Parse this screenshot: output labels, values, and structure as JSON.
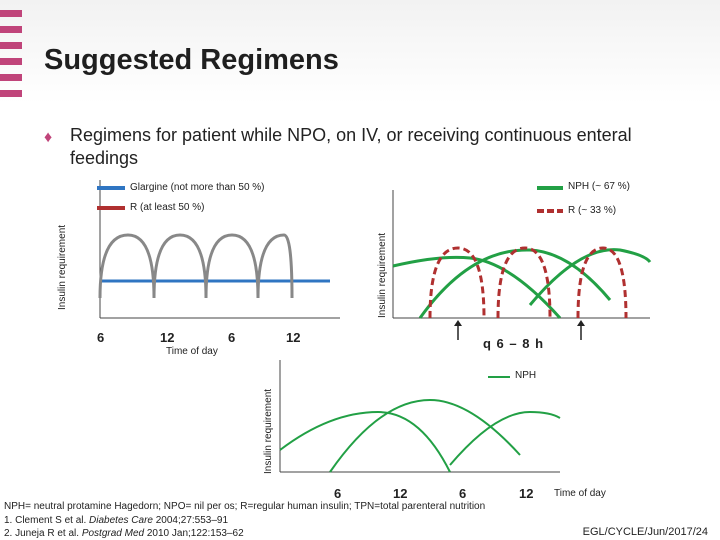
{
  "slide": {
    "title": "Suggested Regimens",
    "bullet": "Regimens for patient while NPO, on  IV, or receiving continuous enteral feedings",
    "footer_code": "EGL/CYCLE/Jun/2017/24"
  },
  "colors": {
    "accent": "#c0447a",
    "blue": "#2f75c2",
    "green": "#22a045",
    "red": "#b03030"
  },
  "chart1": {
    "ylabel": "Insulin requirement",
    "legend_glargine": "Glargine  (not more than 50 %)",
    "legend_r": "R (at least 50 %)",
    "ticks": [
      "6",
      "12",
      "6",
      "12"
    ],
    "xlabel": "Time of day"
  },
  "chart2": {
    "ylabel": "Insulin requirement",
    "legend_nph": "NPH  (~ 67 %)",
    "legend_r": "R (~ 33 %)",
    "interval": "q 6 – 8 h"
  },
  "chart3": {
    "ylabel": "Insulin requirement",
    "legend_nph": "NPH",
    "ticks": [
      "6",
      "12",
      "6",
      "12"
    ],
    "xlabel": "Time of day"
  },
  "footnotes": {
    "abbrev": "NPH= neutral protamine Hagedorn; NPO= nil per os; R=regular human insulin; TPN=total parenteral nutrition",
    "ref1_prefix": "1. Clement S et al. ",
    "ref1_journal": "Diabetes Care",
    "ref1_suffix": " 2004;27:553–91",
    "ref2_prefix": "2. Juneja R et al. ",
    "ref2_journal": "Postgrad Med",
    "ref2_suffix": " 2010 Jan;122:153–62"
  }
}
